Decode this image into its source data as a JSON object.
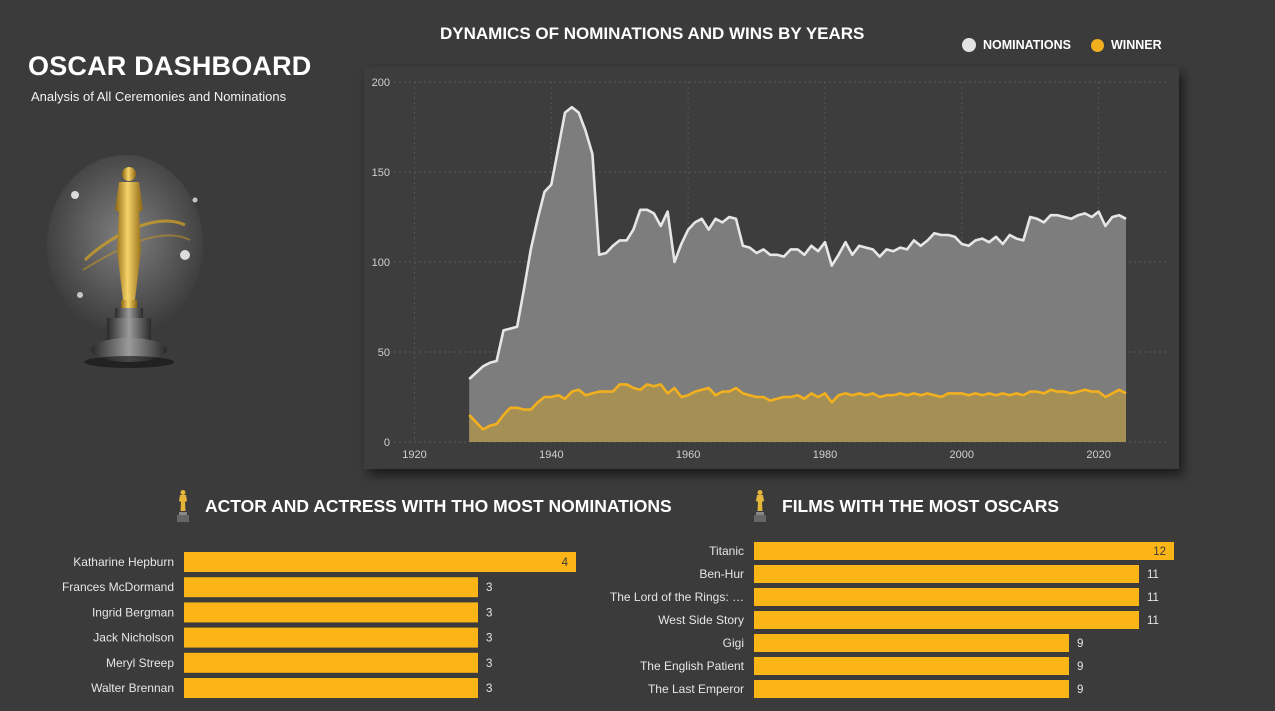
{
  "dashboard": {
    "title": "OSCAR DASHBOARD",
    "subtitle": "Analysis of All Ceremonies and Nominations",
    "trophy_icon": "oscar-statuette-icon"
  },
  "colors": {
    "background": "#3b3b3b",
    "panel": "#3d3d3d",
    "nominations_line": "#e6e6e6",
    "nominations_fill": "#7d7d7d",
    "winner_line": "#f2b01e",
    "winner_fill": "#a99052",
    "bar": "#fbb516"
  },
  "line_chart": {
    "title": "DYNAMICS OF NOMINATIONS AND WINS BY YEARS",
    "legend": [
      "NOMINATIONS",
      "WINNER"
    ],
    "legend_placement": "top-right"
  },
  "actors": {
    "title": "ACTOR AND ACTRESS WITH THO MOST NOMINATIONS"
  },
  "films": {
    "title": "FILMS WITH THE MOST OSCARS"
  },
  "chart_data": [
    {
      "type": "area",
      "title": "DYNAMICS OF NOMINATIONS AND WINS BY YEARS",
      "xlabel": "",
      "ylabel": "",
      "xlim": [
        1917,
        2030
      ],
      "ylim": [
        0,
        200
      ],
      "xticks": [
        1920,
        1940,
        1960,
        1980,
        2000,
        2020
      ],
      "yticks": [
        0,
        50,
        100,
        150,
        200
      ],
      "grid": true,
      "legend": "top-right",
      "x": [
        1928,
        1930,
        1931,
        1932,
        1933,
        1934,
        1935,
        1936,
        1937,
        1938,
        1939,
        1940,
        1941,
        1942,
        1943,
        1944,
        1945,
        1946,
        1947,
        1948,
        1949,
        1950,
        1951,
        1952,
        1953,
        1954,
        1955,
        1956,
        1957,
        1958,
        1959,
        1960,
        1961,
        1962,
        1963,
        1964,
        1965,
        1966,
        1967,
        1968,
        1969,
        1970,
        1971,
        1972,
        1973,
        1974,
        1975,
        1976,
        1977,
        1978,
        1979,
        1980,
        1981,
        1982,
        1983,
        1984,
        1985,
        1986,
        1987,
        1988,
        1989,
        1990,
        1991,
        1992,
        1993,
        1994,
        1995,
        1996,
        1997,
        1998,
        1999,
        2000,
        2001,
        2002,
        2003,
        2004,
        2005,
        2006,
        2007,
        2008,
        2009,
        2010,
        2011,
        2012,
        2013,
        2014,
        2015,
        2016,
        2017,
        2018,
        2019,
        2020,
        2021,
        2022,
        2023,
        2024
      ],
      "series": [
        {
          "name": "NOMINATIONS",
          "values": [
            35,
            42,
            44,
            45,
            62,
            63,
            64,
            85,
            107,
            124,
            139,
            143,
            163,
            183,
            186,
            183,
            173,
            160,
            104,
            105,
            109,
            112,
            112,
            118,
            129,
            129,
            127,
            120,
            128,
            100,
            110,
            118,
            122,
            124,
            118,
            124,
            122,
            125,
            124,
            109,
            108,
            105,
            107,
            104,
            104,
            103,
            107,
            107,
            104,
            109,
            106,
            111,
            98,
            104,
            111,
            104,
            109,
            108,
            107,
            103,
            107,
            106,
            108,
            107,
            112,
            109,
            112,
            116,
            115,
            115,
            114,
            110,
            109,
            112,
            113,
            111,
            114,
            110,
            115,
            113,
            112,
            125,
            124,
            122,
            126,
            126,
            125,
            124,
            126,
            127,
            125,
            128,
            120,
            125,
            126,
            124
          ]
        },
        {
          "name": "WINNER",
          "values": [
            15,
            7,
            9,
            10,
            15,
            19,
            19,
            18,
            18,
            22,
            25,
            25,
            26,
            24,
            28,
            29,
            26,
            27,
            28,
            28,
            28,
            32,
            32,
            30,
            29,
            32,
            31,
            32,
            27,
            30,
            25,
            26,
            28,
            29,
            30,
            26,
            28,
            28,
            30,
            27,
            26,
            25,
            25,
            23,
            24,
            25,
            25,
            26,
            24,
            27,
            25,
            27,
            22,
            26,
            27,
            26,
            27,
            26,
            27,
            25,
            26,
            26,
            27,
            26,
            27,
            26,
            27,
            26,
            25,
            27,
            27,
            27,
            26,
            27,
            26,
            27,
            26,
            27,
            26,
            27,
            26,
            28,
            28,
            27,
            29,
            28,
            28,
            27,
            28,
            29,
            28,
            28,
            25,
            27,
            29,
            27
          ]
        }
      ]
    },
    {
      "type": "bar",
      "orientation": "horizontal",
      "title": "ACTOR AND ACTRESS WITH THO MOST NOMINATIONS",
      "categories": [
        "Katharine Hepburn",
        "Frances McDormand",
        "Ingrid Bergman",
        "Jack Nicholson",
        "Meryl Streep",
        "Walter Brennan"
      ],
      "values": [
        4,
        3,
        3,
        3,
        3,
        3
      ],
      "data_labels": true
    },
    {
      "type": "bar",
      "orientation": "horizontal",
      "title": "FILMS WITH THE MOST OSCARS",
      "categories": [
        "Titanic",
        "Ben-Hur",
        "The Lord of the Rings: …",
        "West Side Story",
        "Gigi",
        "The English Patient",
        "The Last Emperor"
      ],
      "values": [
        12,
        11,
        11,
        11,
        9,
        9,
        9
      ],
      "data_labels": true
    }
  ]
}
